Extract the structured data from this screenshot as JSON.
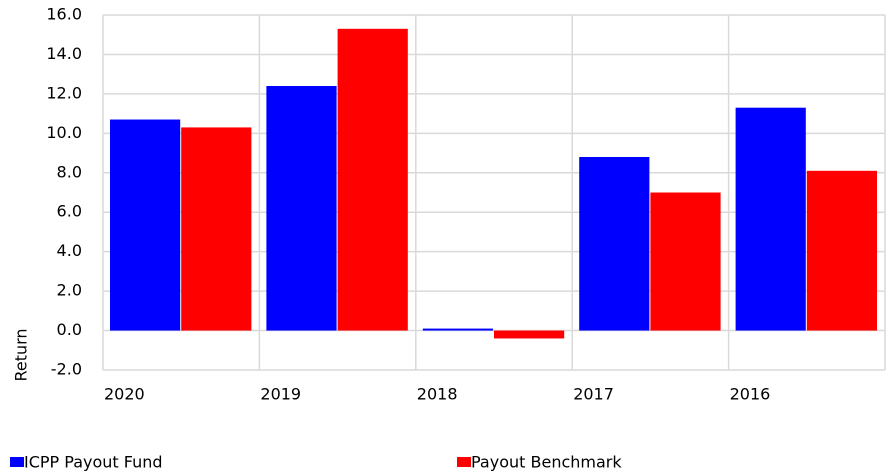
{
  "chart_data": {
    "type": "bar",
    "y_label": "Return",
    "categories": [
      "2020",
      "2019",
      "2018",
      "2017",
      "2016"
    ],
    "series": [
      {
        "name": "ICPP Payout Fund",
        "color": "#0000ff",
        "values": [
          10.7,
          12.4,
          0.1,
          8.8,
          11.3
        ]
      },
      {
        "name": "Payout Benchmark",
        "color": "#ff0000",
        "values": [
          10.3,
          15.3,
          -0.4,
          7.0,
          8.1
        ]
      }
    ],
    "ylim": [
      -2,
      16
    ],
    "yticks": [
      {
        "value": -2,
        "label": "-2.0"
      },
      {
        "value": 0,
        "label": "0.0"
      },
      {
        "value": 2,
        "label": "2.0"
      },
      {
        "value": 4,
        "label": "4.0"
      },
      {
        "value": 6,
        "label": "6.0"
      },
      {
        "value": 8,
        "label": "8.0"
      },
      {
        "value": 10,
        "label": "10.0"
      },
      {
        "value": 12,
        "label": "12.0"
      },
      {
        "value": 14,
        "label": "14.0"
      },
      {
        "value": 16,
        "label": "16.0"
      }
    ],
    "grid": true
  }
}
